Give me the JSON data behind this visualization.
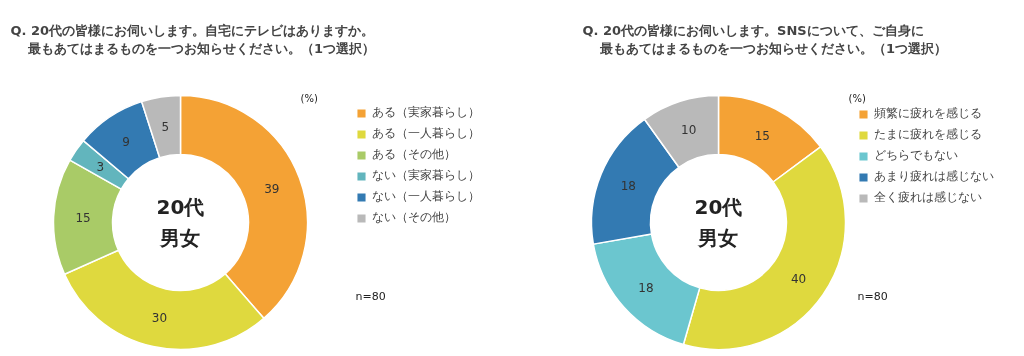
{
  "chart_data": [
    {
      "type": "donut",
      "title": "Q. 20代の皆様にお伺いします。自宅にテレビはありますか。最もあてはまるものを一つお知らせください。（1つ選択）",
      "categories": [
        "ある（実家暮らし）",
        "ある（一人暮らし）",
        "ある（その他）",
        "ない（実家暮らし）",
        "ない（一人暮らし）",
        "ない（その他）"
      ],
      "values": [
        39,
        30,
        15,
        3,
        9,
        5
      ],
      "colors": [
        "#f4a235",
        "#dfd93e",
        "#a9cb67",
        "#62b5bd",
        "#337ab2",
        "#b9b9b9"
      ],
      "data_labels": true,
      "legend": "right",
      "annotations": [
        "20代男女",
        "(%)",
        "n=80"
      ]
    },
    {
      "type": "donut",
      "title": "Q. 20代の皆様にお伺いします。SNSについて、ご自身に最もあてはまるものを一つお知らせください。（1つ選択）",
      "categories": [
        "頻繁に疲れを感じる",
        "たまに疲れを感じる",
        "どちらでもない",
        "あまり疲れは感じない",
        "全く疲れは感じない"
      ],
      "values": [
        15,
        40,
        18,
        18,
        10
      ],
      "colors": [
        "#f4a235",
        "#dfd93e",
        "#6bc6cf",
        "#337ab2",
        "#b9b9b9"
      ],
      "data_labels": true,
      "legend": "right",
      "annotations": [
        "20代男女",
        "(%)",
        "n=80"
      ]
    }
  ]
}
